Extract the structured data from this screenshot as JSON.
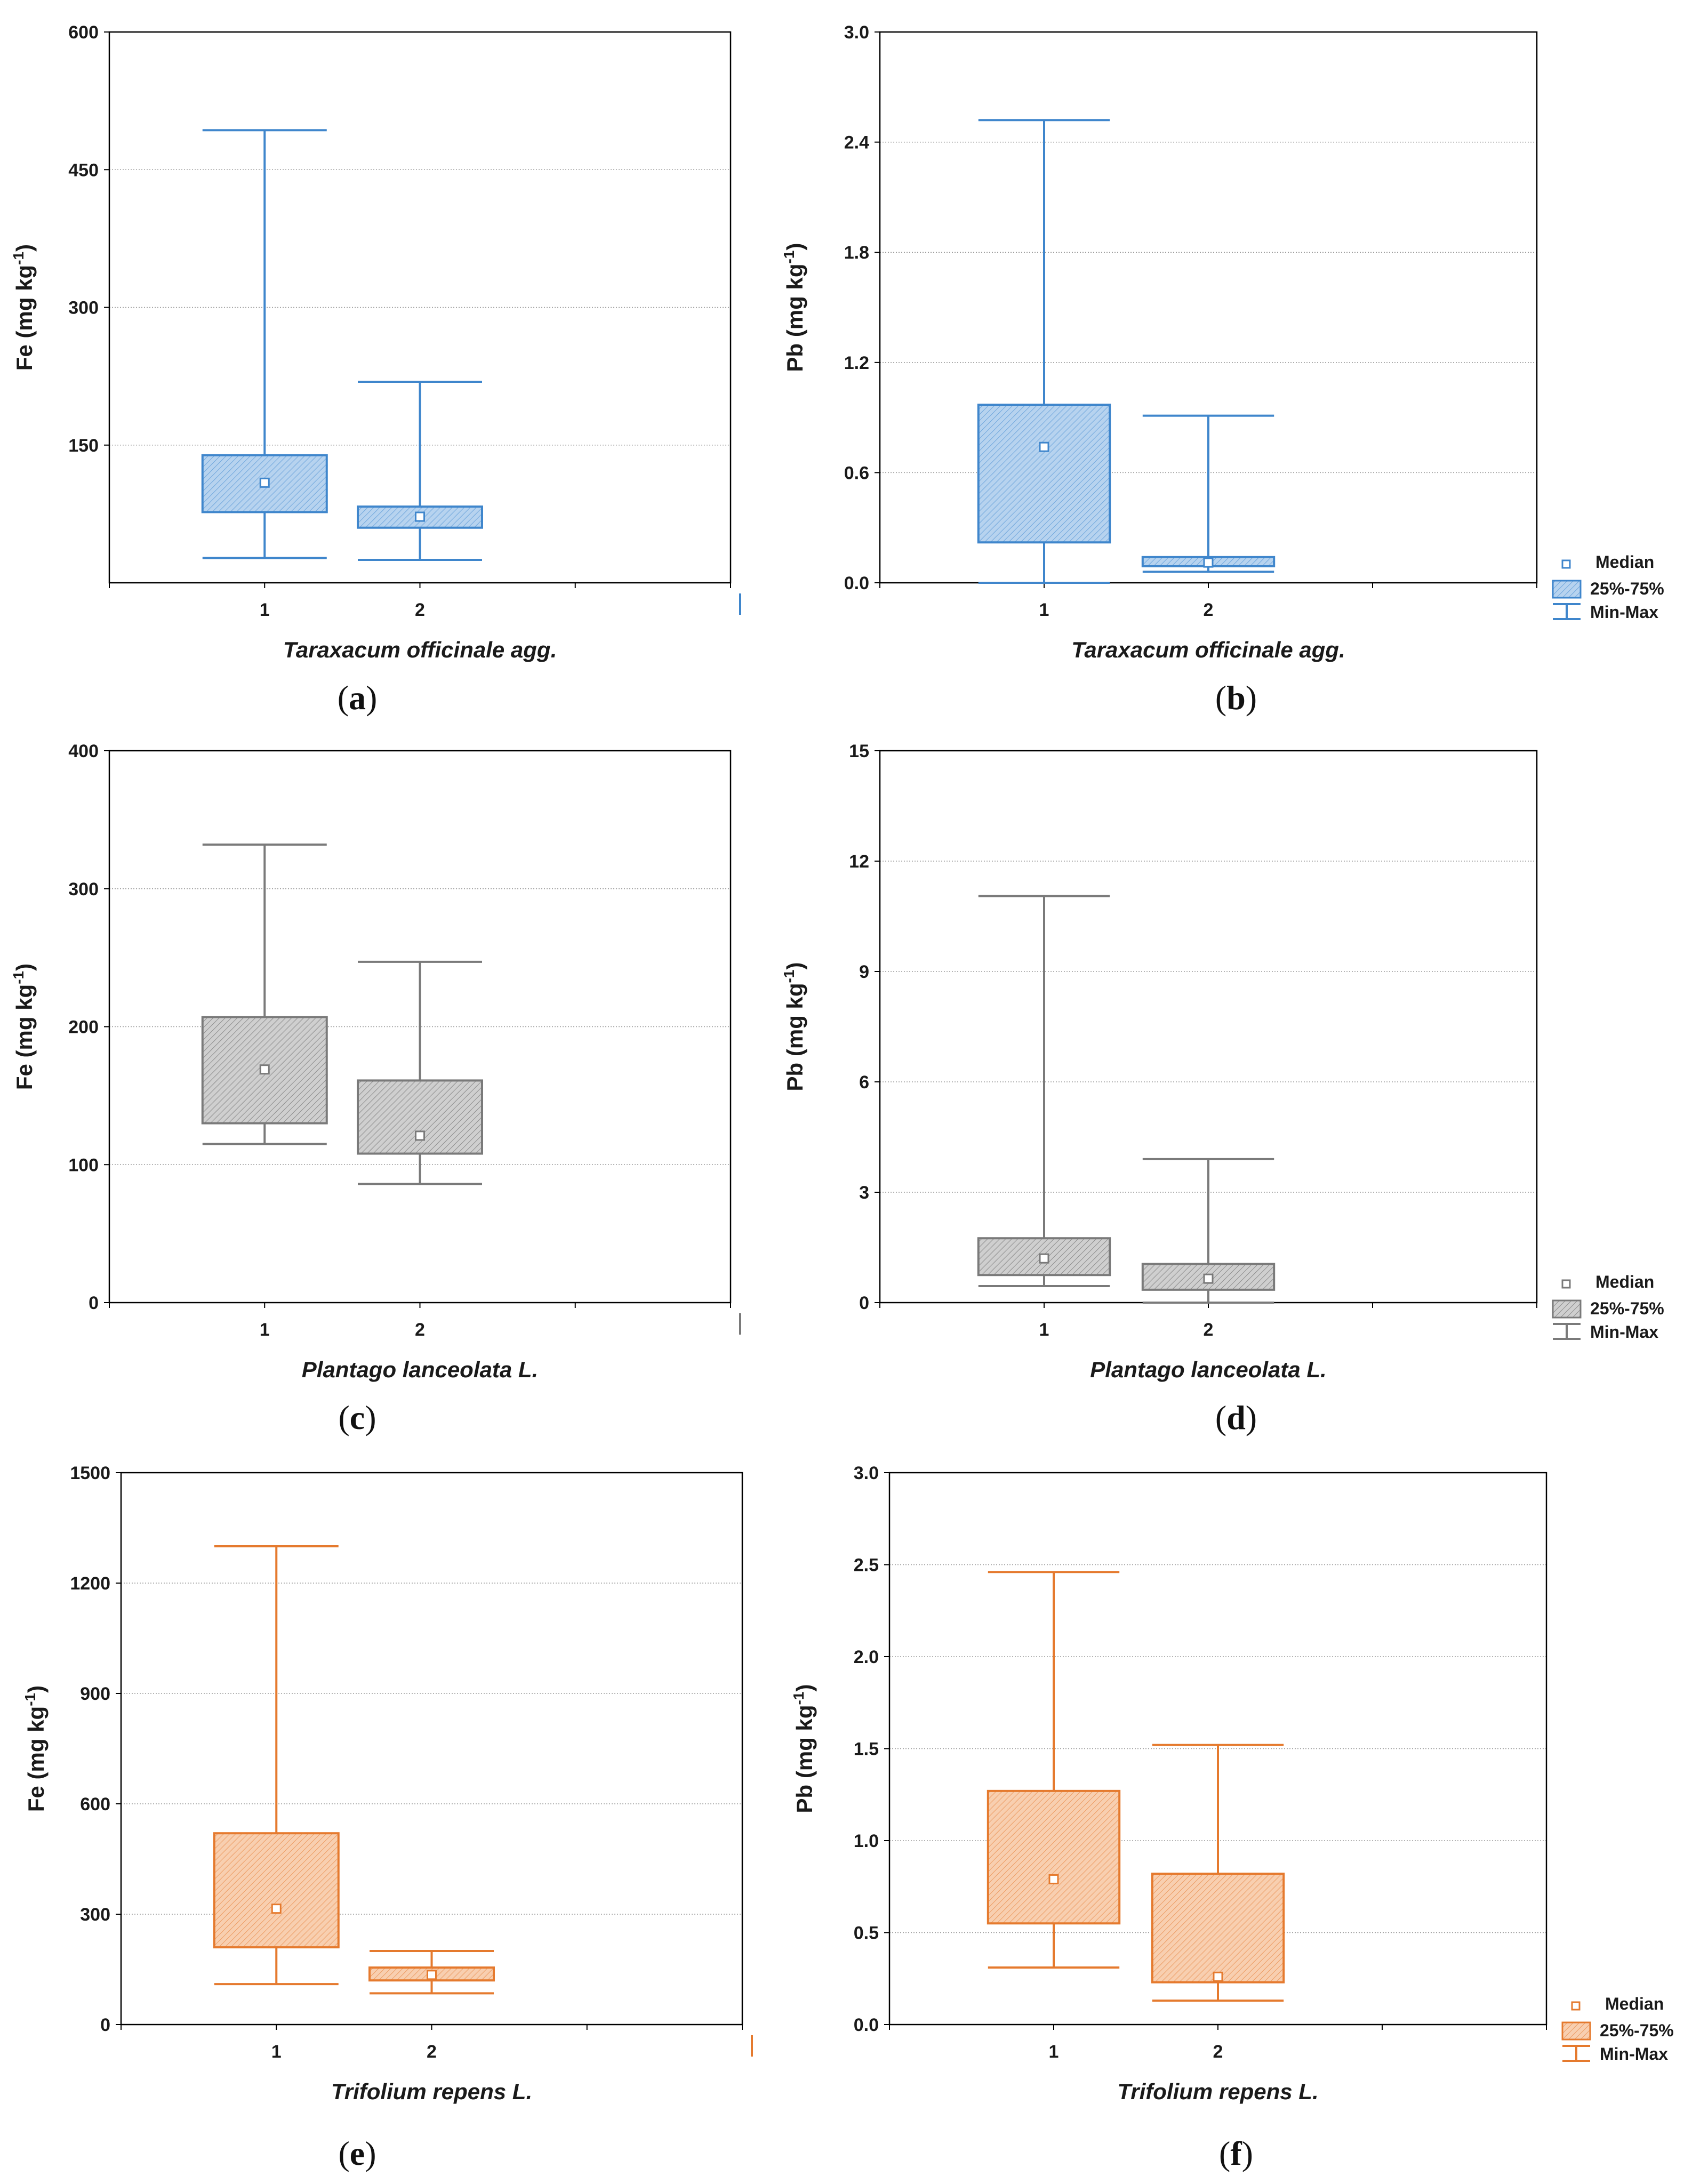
{
  "chart_data": [
    {
      "type": "box",
      "panel": "a",
      "ylabel": "Fe",
      "yunit": "(mg kg",
      "yunit_sup": "-1",
      "yunit_close": ")",
      "xlabel": "Taraxacum officinale agg.",
      "categories": [
        "1",
        "2"
      ],
      "ylim": [
        0,
        600
      ],
      "yticks": [
        "600",
        "450",
        "300",
        "150"
      ],
      "ytick_values": [
        600,
        450,
        300,
        150
      ],
      "color": "#3f86cc",
      "fill": "#b7d3ef",
      "series": [
        {
          "name": "1",
          "min": 27,
          "q1": 77,
          "median": 109,
          "q3": 139,
          "max": 493
        },
        {
          "name": "2",
          "min": 25,
          "q1": 60,
          "median": 72,
          "q3": 83,
          "max": 219
        }
      ]
    },
    {
      "type": "box",
      "panel": "b",
      "ylabel": "Pb",
      "yunit": "(mg kg",
      "yunit_sup": "-1",
      "yunit_close": ")",
      "xlabel": "Taraxacum officinale agg.",
      "categories": [
        "1",
        "2"
      ],
      "ylim": [
        0,
        3.0
      ],
      "yticks": [
        "3.0",
        "2.4",
        "1.8",
        "1.2",
        "0.6",
        "0.0"
      ],
      "ytick_values": [
        3.0,
        2.4,
        1.8,
        1.2,
        0.6,
        0.0
      ],
      "color": "#3f86cc",
      "fill": "#b7d3ef",
      "legend": [
        "Median",
        "25%-75%",
        "Min-Max"
      ],
      "series": [
        {
          "name": "1",
          "min": 0.0,
          "q1": 0.22,
          "median": 0.74,
          "q3": 0.97,
          "max": 2.52
        },
        {
          "name": "2",
          "min": 0.06,
          "q1": 0.09,
          "median": 0.11,
          "q3": 0.14,
          "max": 0.91
        }
      ]
    },
    {
      "type": "box",
      "panel": "c",
      "ylabel": "Fe",
      "yunit": "(mg kg",
      "yunit_sup": "-1",
      "yunit_close": ")",
      "xlabel": "Plantago lanceolata L.",
      "categories": [
        "1",
        "2"
      ],
      "ylim": [
        0,
        400
      ],
      "yticks": [
        "400",
        "300",
        "200",
        "100",
        "0"
      ],
      "ytick_values": [
        400,
        300,
        200,
        100,
        0
      ],
      "color": "#7a7a7a",
      "fill": "#c8c8c8",
      "series": [
        {
          "name": "1",
          "min": 115,
          "q1": 130,
          "median": 169,
          "q3": 207,
          "max": 332
        },
        {
          "name": "2",
          "min": 86,
          "q1": 108,
          "median": 121,
          "q3": 161,
          "max": 247
        }
      ]
    },
    {
      "type": "box",
      "panel": "d",
      "ylabel": "Pb",
      "yunit": "(mg kg",
      "yunit_sup": "-1",
      "yunit_close": ")",
      "xlabel": "Plantago lanceolata L.",
      "categories": [
        "1",
        "2"
      ],
      "ylim": [
        0,
        15
      ],
      "yticks": [
        "15",
        "12",
        "9",
        "6",
        "3",
        "0"
      ],
      "ytick_values": [
        15,
        12,
        9,
        6,
        3,
        0
      ],
      "color": "#7a7a7a",
      "fill": "#c8c8c8",
      "legend": [
        "Median",
        "25%-75%",
        "Min-Max"
      ],
      "series": [
        {
          "name": "1",
          "min": 0.45,
          "q1": 0.75,
          "median": 1.2,
          "q3": 1.75,
          "max": 11.05
        },
        {
          "name": "2",
          "min": 0.0,
          "q1": 0.35,
          "median": 0.65,
          "q3": 1.05,
          "max": 3.9
        }
      ]
    },
    {
      "type": "box",
      "panel": "e",
      "ylabel": "Fe",
      "yunit": "(mg kg",
      "yunit_sup": "-1",
      "yunit_close": ")",
      "xlabel": "Trifolium repens L.",
      "categories": [
        "1",
        "2"
      ],
      "ylim": [
        0,
        1500
      ],
      "yticks": [
        "1500",
        "1200",
        "900",
        "600",
        "300",
        "0"
      ],
      "ytick_values": [
        1500,
        1200,
        900,
        600,
        300,
        0
      ],
      "color": "#e57a2e",
      "fill": "#f7c9a6",
      "series": [
        {
          "name": "1",
          "min": 110,
          "q1": 210,
          "median": 315,
          "q3": 520,
          "max": 1300
        },
        {
          "name": "2",
          "min": 85,
          "q1": 120,
          "median": 135,
          "q3": 155,
          "max": 200
        }
      ]
    },
    {
      "type": "box",
      "panel": "f",
      "ylabel": "Pb",
      "yunit": "(mg kg",
      "yunit_sup": "-1",
      "yunit_close": ")",
      "xlabel": "Trifolium repens L.",
      "categories": [
        "1",
        "2"
      ],
      "ylim": [
        0,
        3.0
      ],
      "yticks": [
        "3.0",
        "2.5",
        "2.0",
        "1.5",
        "1.0",
        "0.5",
        "0.0"
      ],
      "ytick_values": [
        3.0,
        2.5,
        2.0,
        1.5,
        1.0,
        0.5,
        0.0
      ],
      "color": "#e57a2e",
      "fill": "#f7c9a6",
      "legend": [
        "Median",
        "25%-75%",
        "Min-Max"
      ],
      "series": [
        {
          "name": "1",
          "min": 0.31,
          "q1": 0.55,
          "median": 0.79,
          "q3": 1.27,
          "max": 2.46
        },
        {
          "name": "2",
          "min": 0.13,
          "q1": 0.23,
          "median": 0.26,
          "q3": 0.82,
          "max": 1.52
        }
      ]
    }
  ]
}
